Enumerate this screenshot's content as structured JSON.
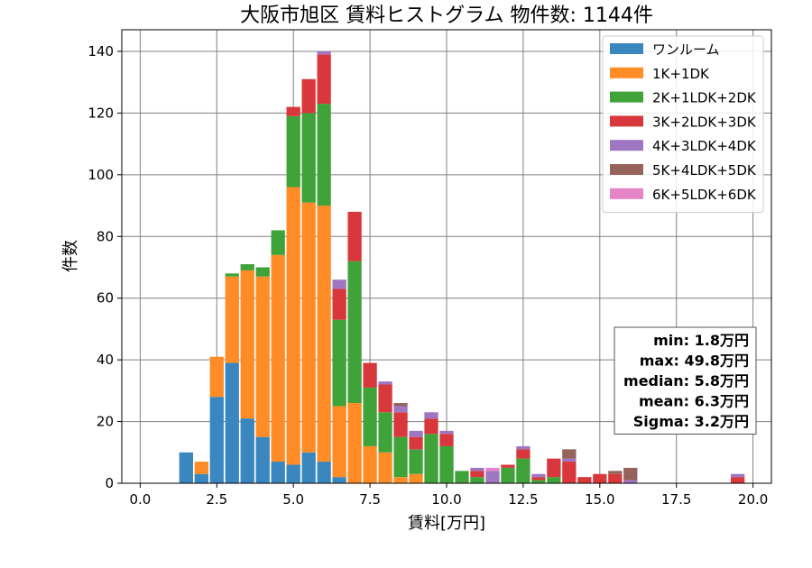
{
  "chart_data": {
    "type": "bar",
    "stacked": true,
    "title": "大阪市旭区 賃料ヒストグラム 物件数: 1144件",
    "xlabel": "賃料[万円]",
    "ylabel": "件数",
    "xlim": [
      -0.6,
      20.6
    ],
    "ylim": [
      0,
      147
    ],
    "grid": true,
    "legend_position": "top-right",
    "bin_width": 0.5,
    "xticks": [
      {
        "value": 0.0,
        "label": "0.0"
      },
      {
        "value": 2.5,
        "label": "2.5"
      },
      {
        "value": 5.0,
        "label": "5.0"
      },
      {
        "value": 7.5,
        "label": "7.5"
      },
      {
        "value": 10.0,
        "label": "10.0"
      },
      {
        "value": 12.5,
        "label": "12.5"
      },
      {
        "value": 15.0,
        "label": "15.0"
      },
      {
        "value": 17.5,
        "label": "17.5"
      },
      {
        "value": 20.0,
        "label": "20.0"
      }
    ],
    "yticks": [
      {
        "value": 0,
        "label": "0"
      },
      {
        "value": 20,
        "label": "20"
      },
      {
        "value": 40,
        "label": "40"
      },
      {
        "value": 60,
        "label": "60"
      },
      {
        "value": 80,
        "label": "80"
      },
      {
        "value": 100,
        "label": "100"
      },
      {
        "value": 120,
        "label": "120"
      },
      {
        "value": 140,
        "label": "140"
      }
    ],
    "x": [
      1.5,
      2.0,
      2.5,
      3.0,
      3.5,
      4.0,
      4.5,
      5.0,
      5.5,
      6.0,
      6.5,
      7.0,
      7.5,
      8.0,
      8.5,
      9.0,
      9.5,
      10.0,
      10.5,
      11.0,
      11.5,
      12.0,
      12.5,
      13.0,
      13.5,
      14.0,
      14.5,
      15.0,
      15.5,
      16.0,
      19.5
    ],
    "series": [
      {
        "name": "ワンルーム",
        "color": "#3a86bf",
        "values": [
          10,
          3,
          28,
          39,
          21,
          15,
          7,
          6,
          10,
          7,
          2,
          0,
          0,
          0,
          0,
          0,
          0,
          0,
          0,
          0,
          0,
          0,
          0,
          0,
          0,
          0,
          0,
          0,
          0,
          0,
          0
        ]
      },
      {
        "name": "1K+1DK",
        "color": "#ff8c26",
        "values": [
          0,
          4,
          13,
          28,
          48,
          52,
          67,
          90,
          81,
          83,
          23,
          26,
          12,
          10,
          2,
          3,
          0,
          0,
          0,
          0,
          0,
          0,
          0,
          0,
          0,
          0,
          0,
          0,
          0,
          0,
          0
        ]
      },
      {
        "name": "2K+1LDK+2DK",
        "color": "#40a33a",
        "values": [
          0,
          0,
          0,
          1,
          2,
          3,
          8,
          23,
          29,
          33,
          28,
          46,
          19,
          13,
          13,
          8,
          16,
          12,
          4,
          2,
          0,
          5,
          8,
          1,
          2,
          0,
          0,
          0,
          0,
          0,
          0
        ]
      },
      {
        "name": "3K+2LDK+3DK",
        "color": "#d8383b",
        "values": [
          0,
          0,
          0,
          0,
          0,
          0,
          0,
          3,
          11,
          16,
          10,
          16,
          8,
          9,
          8,
          4,
          5,
          4,
          0,
          2,
          0,
          1,
          3,
          1,
          6,
          7,
          2,
          3,
          3,
          0,
          2
        ]
      },
      {
        "name": "4K+3LDK+4DK",
        "color": "#9e76c2",
        "values": [
          0,
          0,
          0,
          0,
          0,
          0,
          0,
          0,
          0,
          1,
          3,
          0,
          0,
          1,
          2,
          2,
          2,
          1,
          0,
          1,
          4,
          0,
          1,
          1,
          0,
          1,
          0,
          0,
          0,
          1,
          1
        ]
      },
      {
        "name": "5K+4LDK+5DK",
        "color": "#956359",
        "values": [
          0,
          0,
          0,
          0,
          0,
          0,
          0,
          0,
          0,
          0,
          0,
          0,
          0,
          0,
          1,
          0,
          0,
          0,
          0,
          0,
          0,
          0,
          0,
          0,
          0,
          3,
          0,
          0,
          1,
          4,
          0
        ]
      },
      {
        "name": "6K+5LDK+6DK",
        "color": "#e684c8",
        "values": [
          0,
          0,
          0,
          0,
          0,
          0,
          0,
          0,
          0,
          0,
          0,
          0,
          0,
          0,
          0,
          0,
          0,
          0,
          0,
          0,
          1,
          0,
          0,
          0,
          0,
          0,
          0,
          0,
          0,
          0,
          0
        ]
      }
    ],
    "stats": [
      "min: 1.8万円",
      "max: 49.8万円",
      "median: 5.8万円",
      "mean: 6.3万円",
      "Sigma: 3.2万円"
    ]
  }
}
